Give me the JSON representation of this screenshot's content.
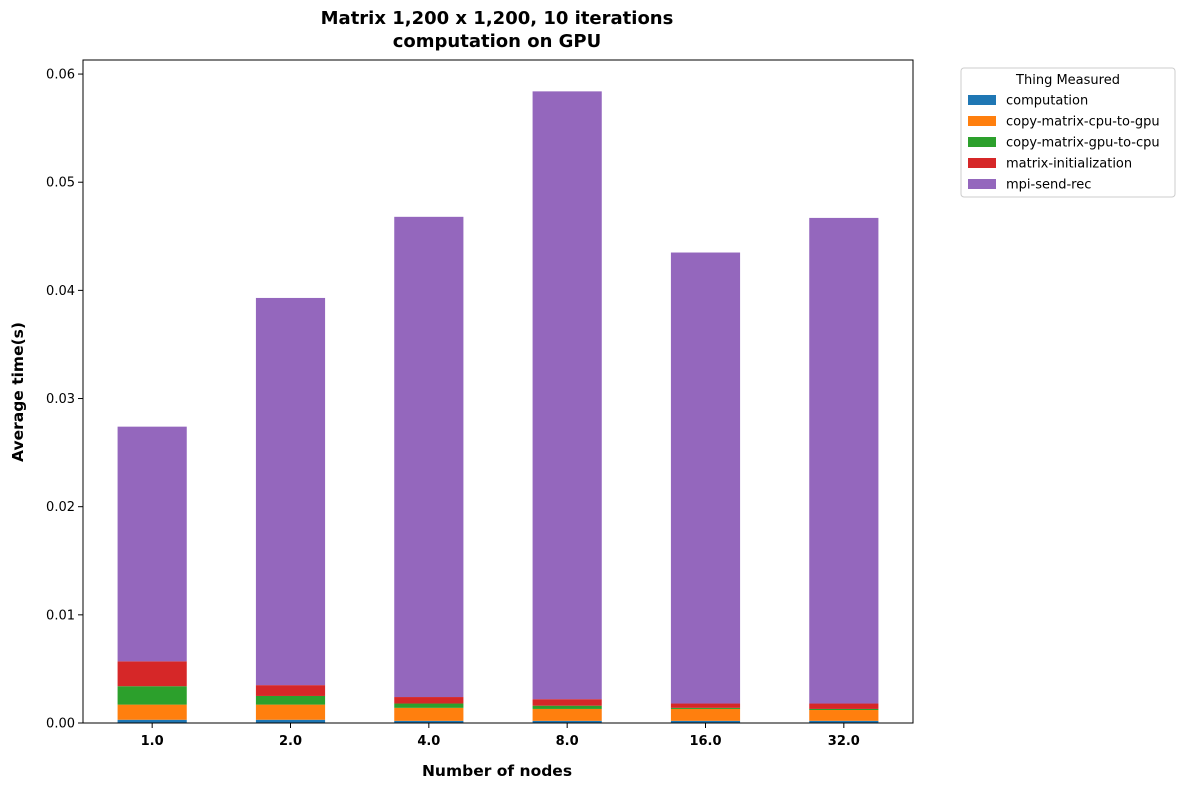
{
  "chart_data": {
    "type": "bar",
    "stacked": true,
    "title_line1": "Matrix 1,200 x 1,200, 10 iterations",
    "title_line2": "computation on GPU",
    "xlabel": "Number of nodes",
    "ylabel": "Average time(s)",
    "categories": [
      "1.0",
      "2.0",
      "4.0",
      "8.0",
      "16.0",
      "32.0"
    ],
    "ylim": [
      0,
      0.0613
    ],
    "yticks": [
      "0.00",
      "0.01",
      "0.02",
      "0.03",
      "0.04",
      "0.05",
      "0.06"
    ],
    "ytick_values": [
      0,
      0.01,
      0.02,
      0.03,
      0.04,
      0.05,
      0.06
    ],
    "grid": false,
    "legend_title": "Thing Measured",
    "legend_position": "outside-top-right",
    "series": [
      {
        "name": "computation",
        "color": "#1f77b4",
        "values": [
          0.0003,
          0.0003,
          0.0002,
          0.0002,
          0.0002,
          0.0002
        ]
      },
      {
        "name": "copy-matrix-cpu-to-gpu",
        "color": "#ff7f0e",
        "values": [
          0.0014,
          0.0014,
          0.0012,
          0.0011,
          0.0011,
          0.001
        ]
      },
      {
        "name": "copy-matrix-gpu-to-cpu",
        "color": "#2ca02c",
        "values": [
          0.0017,
          0.0008,
          0.0004,
          0.0003,
          0.0001,
          0.0001
        ]
      },
      {
        "name": "matrix-initialization",
        "color": "#d62728",
        "values": [
          0.0023,
          0.001,
          0.0006,
          0.0006,
          0.0004,
          0.0005
        ]
      },
      {
        "name": "mpi-send-rec",
        "color": "#9467bd",
        "values": [
          0.0217,
          0.0358,
          0.0444,
          0.0562,
          0.0417,
          0.0449
        ]
      }
    ]
  }
}
